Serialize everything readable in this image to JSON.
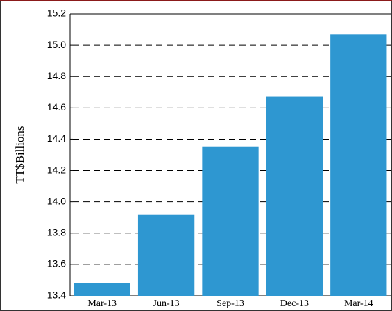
{
  "chart_data": {
    "type": "bar",
    "y_label": "TT$Billions",
    "categories": [
      "Mar-13",
      "Jun-13",
      "Sep-13",
      "Dec-13",
      "Mar-14"
    ],
    "values": [
      13.48,
      13.92,
      14.35,
      14.67,
      15.07
    ],
    "color": "#2e97d1",
    "ylim": [
      13.4,
      15.2
    ],
    "yticks": [
      13.4,
      13.6,
      13.8,
      {
        "value": 14,
        "label": "14.0"
      },
      14.2,
      14.4,
      14.6,
      14.8,
      {
        "value": 15,
        "label": "15.0"
      },
      15.2
    ],
    "grid": true
  }
}
